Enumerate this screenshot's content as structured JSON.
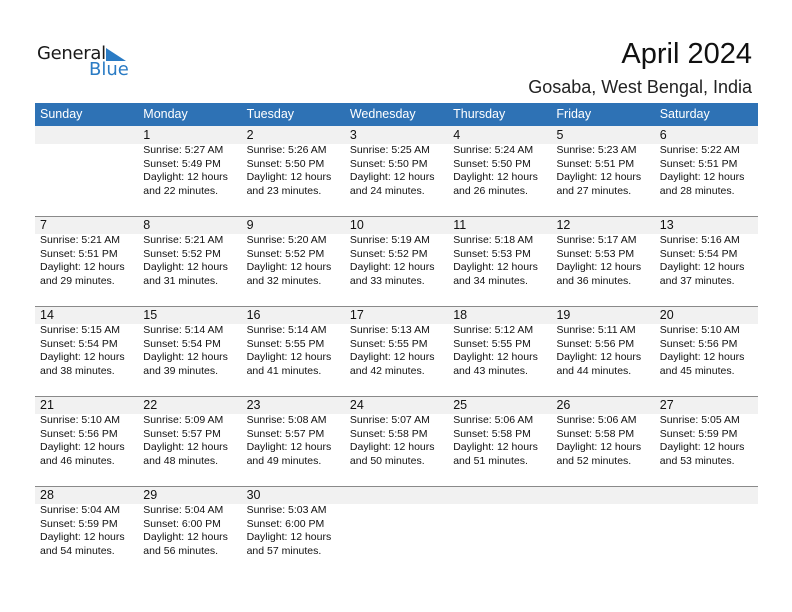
{
  "brand": {
    "word1": "General",
    "word2": "Blue",
    "accent": "#2a7bc4"
  },
  "header": {
    "title": "April 2024",
    "location": "Gosaba, West Bengal, India"
  },
  "colors": {
    "header_bg": "#2e72b5",
    "date_band": "#f1f1f1"
  },
  "weekdays": [
    "Sunday",
    "Monday",
    "Tuesday",
    "Wednesday",
    "Thursday",
    "Friday",
    "Saturday"
  ],
  "weeks": [
    [
      null,
      {
        "day": "1",
        "sunrise": "Sunrise: 5:27 AM",
        "sunset": "Sunset: 5:49 PM",
        "daylight1": "Daylight: 12 hours",
        "daylight2": "and 22 minutes."
      },
      {
        "day": "2",
        "sunrise": "Sunrise: 5:26 AM",
        "sunset": "Sunset: 5:50 PM",
        "daylight1": "Daylight: 12 hours",
        "daylight2": "and 23 minutes."
      },
      {
        "day": "3",
        "sunrise": "Sunrise: 5:25 AM",
        "sunset": "Sunset: 5:50 PM",
        "daylight1": "Daylight: 12 hours",
        "daylight2": "and 24 minutes."
      },
      {
        "day": "4",
        "sunrise": "Sunrise: 5:24 AM",
        "sunset": "Sunset: 5:50 PM",
        "daylight1": "Daylight: 12 hours",
        "daylight2": "and 26 minutes."
      },
      {
        "day": "5",
        "sunrise": "Sunrise: 5:23 AM",
        "sunset": "Sunset: 5:51 PM",
        "daylight1": "Daylight: 12 hours",
        "daylight2": "and 27 minutes."
      },
      {
        "day": "6",
        "sunrise": "Sunrise: 5:22 AM",
        "sunset": "Sunset: 5:51 PM",
        "daylight1": "Daylight: 12 hours",
        "daylight2": "and 28 minutes."
      }
    ],
    [
      {
        "day": "7",
        "sunrise": "Sunrise: 5:21 AM",
        "sunset": "Sunset: 5:51 PM",
        "daylight1": "Daylight: 12 hours",
        "daylight2": "and 29 minutes."
      },
      {
        "day": "8",
        "sunrise": "Sunrise: 5:21 AM",
        "sunset": "Sunset: 5:52 PM",
        "daylight1": "Daylight: 12 hours",
        "daylight2": "and 31 minutes."
      },
      {
        "day": "9",
        "sunrise": "Sunrise: 5:20 AM",
        "sunset": "Sunset: 5:52 PM",
        "daylight1": "Daylight: 12 hours",
        "daylight2": "and 32 minutes."
      },
      {
        "day": "10",
        "sunrise": "Sunrise: 5:19 AM",
        "sunset": "Sunset: 5:52 PM",
        "daylight1": "Daylight: 12 hours",
        "daylight2": "and 33 minutes."
      },
      {
        "day": "11",
        "sunrise": "Sunrise: 5:18 AM",
        "sunset": "Sunset: 5:53 PM",
        "daylight1": "Daylight: 12 hours",
        "daylight2": "and 34 minutes."
      },
      {
        "day": "12",
        "sunrise": "Sunrise: 5:17 AM",
        "sunset": "Sunset: 5:53 PM",
        "daylight1": "Daylight: 12 hours",
        "daylight2": "and 36 minutes."
      },
      {
        "day": "13",
        "sunrise": "Sunrise: 5:16 AM",
        "sunset": "Sunset: 5:54 PM",
        "daylight1": "Daylight: 12 hours",
        "daylight2": "and 37 minutes."
      }
    ],
    [
      {
        "day": "14",
        "sunrise": "Sunrise: 5:15 AM",
        "sunset": "Sunset: 5:54 PM",
        "daylight1": "Daylight: 12 hours",
        "daylight2": "and 38 minutes."
      },
      {
        "day": "15",
        "sunrise": "Sunrise: 5:14 AM",
        "sunset": "Sunset: 5:54 PM",
        "daylight1": "Daylight: 12 hours",
        "daylight2": "and 39 minutes."
      },
      {
        "day": "16",
        "sunrise": "Sunrise: 5:14 AM",
        "sunset": "Sunset: 5:55 PM",
        "daylight1": "Daylight: 12 hours",
        "daylight2": "and 41 minutes."
      },
      {
        "day": "17",
        "sunrise": "Sunrise: 5:13 AM",
        "sunset": "Sunset: 5:55 PM",
        "daylight1": "Daylight: 12 hours",
        "daylight2": "and 42 minutes."
      },
      {
        "day": "18",
        "sunrise": "Sunrise: 5:12 AM",
        "sunset": "Sunset: 5:55 PM",
        "daylight1": "Daylight: 12 hours",
        "daylight2": "and 43 minutes."
      },
      {
        "day": "19",
        "sunrise": "Sunrise: 5:11 AM",
        "sunset": "Sunset: 5:56 PM",
        "daylight1": "Daylight: 12 hours",
        "daylight2": "and 44 minutes."
      },
      {
        "day": "20",
        "sunrise": "Sunrise: 5:10 AM",
        "sunset": "Sunset: 5:56 PM",
        "daylight1": "Daylight: 12 hours",
        "daylight2": "and 45 minutes."
      }
    ],
    [
      {
        "day": "21",
        "sunrise": "Sunrise: 5:10 AM",
        "sunset": "Sunset: 5:56 PM",
        "daylight1": "Daylight: 12 hours",
        "daylight2": "and 46 minutes."
      },
      {
        "day": "22",
        "sunrise": "Sunrise: 5:09 AM",
        "sunset": "Sunset: 5:57 PM",
        "daylight1": "Daylight: 12 hours",
        "daylight2": "and 48 minutes."
      },
      {
        "day": "23",
        "sunrise": "Sunrise: 5:08 AM",
        "sunset": "Sunset: 5:57 PM",
        "daylight1": "Daylight: 12 hours",
        "daylight2": "and 49 minutes."
      },
      {
        "day": "24",
        "sunrise": "Sunrise: 5:07 AM",
        "sunset": "Sunset: 5:58 PM",
        "daylight1": "Daylight: 12 hours",
        "daylight2": "and 50 minutes."
      },
      {
        "day": "25",
        "sunrise": "Sunrise: 5:06 AM",
        "sunset": "Sunset: 5:58 PM",
        "daylight1": "Daylight: 12 hours",
        "daylight2": "and 51 minutes."
      },
      {
        "day": "26",
        "sunrise": "Sunrise: 5:06 AM",
        "sunset": "Sunset: 5:58 PM",
        "daylight1": "Daylight: 12 hours",
        "daylight2": "and 52 minutes."
      },
      {
        "day": "27",
        "sunrise": "Sunrise: 5:05 AM",
        "sunset": "Sunset: 5:59 PM",
        "daylight1": "Daylight: 12 hours",
        "daylight2": "and 53 minutes."
      }
    ],
    [
      {
        "day": "28",
        "sunrise": "Sunrise: 5:04 AM",
        "sunset": "Sunset: 5:59 PM",
        "daylight1": "Daylight: 12 hours",
        "daylight2": "and 54 minutes."
      },
      {
        "day": "29",
        "sunrise": "Sunrise: 5:04 AM",
        "sunset": "Sunset: 6:00 PM",
        "daylight1": "Daylight: 12 hours",
        "daylight2": "and 56 minutes."
      },
      {
        "day": "30",
        "sunrise": "Sunrise: 5:03 AM",
        "sunset": "Sunset: 6:00 PM",
        "daylight1": "Daylight: 12 hours",
        "daylight2": "and 57 minutes."
      },
      null,
      null,
      null,
      null
    ]
  ]
}
